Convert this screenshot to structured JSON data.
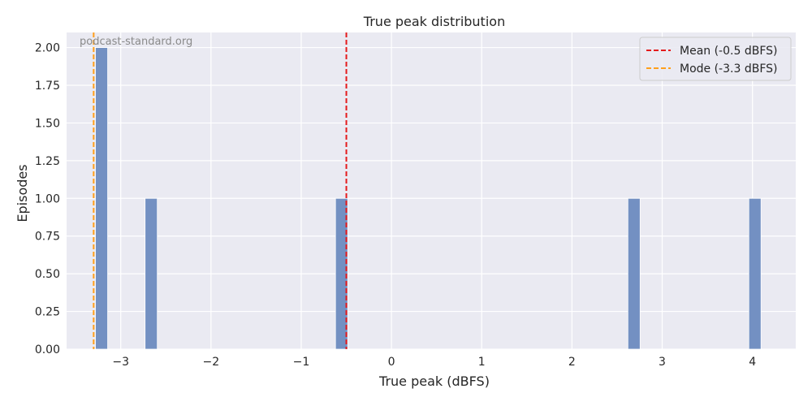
{
  "chart_data": {
    "type": "bar",
    "title": "True peak distribution",
    "xlabel": "True peak (dBFS)",
    "ylabel": "Episodes",
    "watermark": "podcast-standard.org",
    "xlim": [
      -3.6,
      4.48
    ],
    "ylim": [
      0,
      2.1
    ],
    "bin_width": 0.135,
    "bars": [
      {
        "x_start": -3.28,
        "value": 2
      },
      {
        "x_start": -2.73,
        "value": 1
      },
      {
        "x_start": -0.62,
        "value": 1
      },
      {
        "x_start": 2.62,
        "value": 1
      },
      {
        "x_start": 3.96,
        "value": 1
      }
    ],
    "x_ticks": [
      {
        "value": -3,
        "label": "−3"
      },
      {
        "value": -2,
        "label": "−2"
      },
      {
        "value": -1,
        "label": "−1"
      },
      {
        "value": 0,
        "label": "0"
      },
      {
        "value": 1,
        "label": "1"
      },
      {
        "value": 2,
        "label": "2"
      },
      {
        "value": 3,
        "label": "3"
      },
      {
        "value": 4,
        "label": "4"
      }
    ],
    "y_ticks": [
      {
        "value": 0,
        "label": "0.00"
      },
      {
        "value": 0.25,
        "label": "0.25"
      },
      {
        "value": 0.5,
        "label": "0.50"
      },
      {
        "value": 0.75,
        "label": "0.75"
      },
      {
        "value": 1.0,
        "label": "1.00"
      },
      {
        "value": 1.25,
        "label": "1.25"
      },
      {
        "value": 1.5,
        "label": "1.50"
      },
      {
        "value": 1.75,
        "label": "1.75"
      },
      {
        "value": 2.0,
        "label": "2.00"
      }
    ],
    "vlines": [
      {
        "name": "Mean (-0.5 dBFS)",
        "x": -0.5,
        "color": "#e41a1c"
      },
      {
        "name": "Mode (-3.3 dBFS)",
        "x": -3.3,
        "color": "#ff9f1c"
      }
    ],
    "grid": true,
    "legend_position": "top-right",
    "colors": {
      "bar": "#7390c2",
      "plot_background": "#eaeaf2",
      "grid": "#ffffff"
    }
  }
}
